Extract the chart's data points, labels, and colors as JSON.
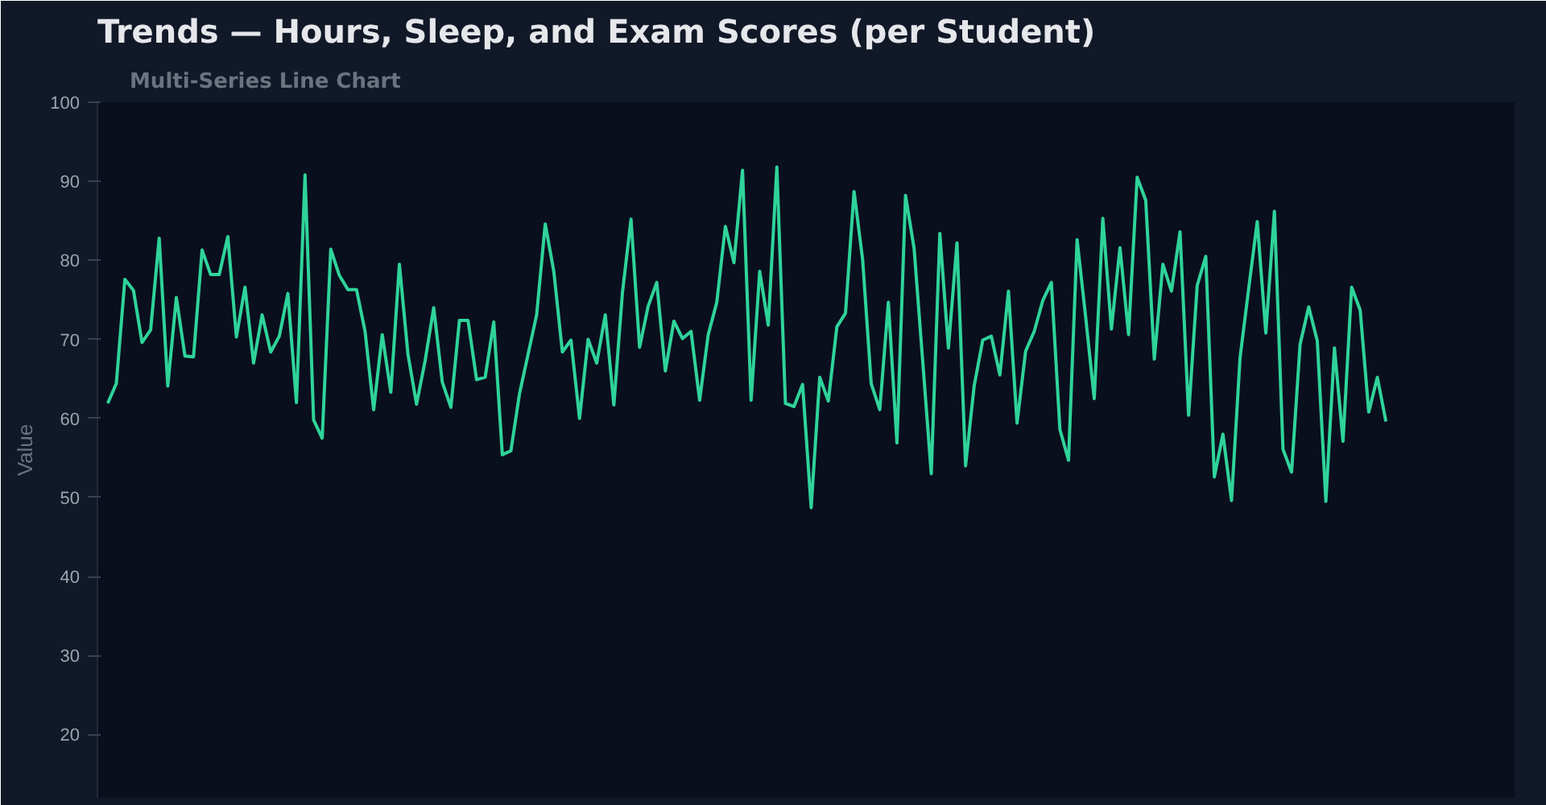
{
  "chart_data": {
    "type": "line",
    "title": "Trends — Hours, Sleep, and Exam Scores (per Student)",
    "subtitle": "Multi-Series Line Chart",
    "ylabel": "Value",
    "categories": [
      null,
      null,
      null,
      null,
      null,
      null,
      null,
      null,
      null,
      null,
      null,
      null,
      null,
      null,
      null,
      null,
      null,
      null,
      null,
      null,
      null,
      null,
      null,
      null,
      null,
      null,
      null,
      null,
      null,
      null,
      null,
      null,
      null,
      null,
      null,
      null,
      null,
      null,
      null,
      null,
      null,
      null,
      null,
      null,
      null,
      null,
      null,
      null,
      null,
      null,
      null,
      null,
      null,
      null,
      null,
      null,
      null,
      null,
      null,
      null,
      null,
      null,
      null,
      null,
      null,
      null,
      null,
      null,
      null,
      null,
      null,
      null,
      null,
      null,
      null,
      null,
      null,
      null,
      null,
      null,
      null,
      null,
      null,
      null,
      null,
      null,
      null,
      null,
      null,
      null,
      null,
      null,
      null,
      null,
      null,
      null,
      null,
      null,
      null,
      null,
      null,
      null,
      null,
      null,
      null,
      null,
      null,
      null,
      null,
      null,
      null,
      null,
      null,
      null,
      null,
      null,
      null,
      null,
      null,
      null,
      null,
      null,
      null,
      null,
      null,
      null,
      null,
      null,
      null,
      null,
      null,
      null,
      null,
      null,
      null,
      null,
      null,
      null,
      null,
      null,
      null,
      null,
      null,
      null,
      null,
      null,
      null,
      null,
      null,
      null
    ],
    "series": [
      {
        "color": "#2fd39a",
        "values": [
          61.9,
          64.4,
          77.6,
          76.2,
          69.6,
          71.2,
          82.8,
          64.1,
          75.3,
          67.9,
          67.8,
          81.3,
          78.2,
          78.2,
          83.0,
          70.3,
          76.6,
          67.0,
          73.1,
          68.4,
          70.4,
          75.8,
          62.0,
          90.8,
          59.8,
          57.5,
          81.4,
          78.1,
          76.3,
          76.3,
          71.0,
          61.1,
          70.6,
          63.3,
          79.5,
          68.1,
          61.8,
          67.3,
          74.0,
          64.6,
          61.4,
          72.4,
          72.4,
          64.9,
          65.2,
          72.2,
          55.4,
          55.9,
          63.1,
          68.1,
          73.1,
          84.6,
          78.6,
          68.4,
          69.9,
          60.0,
          70.0,
          67.0,
          73.1,
          61.7,
          75.9,
          85.2,
          69.0,
          74.2,
          77.2,
          66.0,
          72.3,
          70.1,
          71.0,
          62.3,
          70.6,
          74.7,
          84.3,
          79.7,
          91.4,
          62.3,
          78.6,
          71.8,
          91.8,
          61.9,
          61.5,
          64.3,
          48.7,
          65.2,
          62.2,
          71.6,
          73.3,
          88.7,
          80.1,
          64.4,
          61.1,
          74.7,
          56.9,
          88.2,
          81.5,
          67.3,
          53.0,
          83.4,
          68.9,
          82.2,
          54.0,
          64.1,
          69.9,
          70.4,
          65.5,
          76.1,
          59.4,
          68.5,
          71.0,
          74.9,
          77.2,
          58.6,
          54.7,
          82.6,
          72.8,
          62.5,
          85.3,
          71.3,
          81.6,
          70.6,
          90.5,
          87.6,
          67.5,
          79.5,
          76.1,
          83.6,
          60.4,
          76.8,
          80.5,
          52.6,
          58.0,
          49.6,
          67.7,
          76.4,
          84.9,
          70.8,
          86.2,
          56.1,
          53.2,
          69.4,
          74.1,
          69.8,
          49.5,
          68.9,
          57.1,
          76.6,
          73.7,
          60.8,
          65.2,
          59.6
        ]
      }
    ],
    "ylim": [
      12,
      100
    ],
    "yticks": [
      20,
      30,
      40,
      50,
      60,
      70,
      80,
      90,
      100
    ],
    "grid": false,
    "tick_labels": "y",
    "marker": "none",
    "line_style": "solid"
  }
}
